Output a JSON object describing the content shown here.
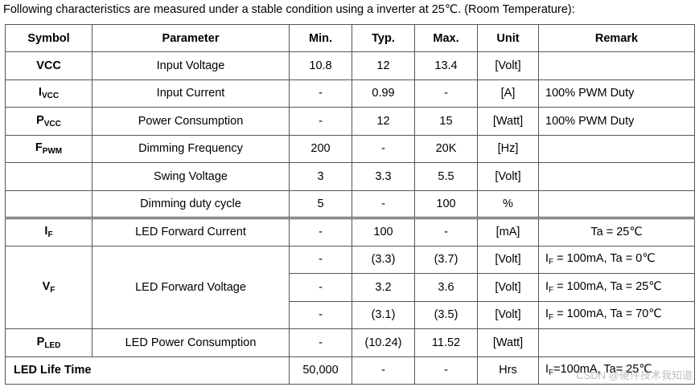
{
  "intro": "Following characteristics are measured under a stable condition using a inverter at 25℃. (Room Temperature):",
  "headers": [
    "Symbol",
    "Parameter",
    "Min.",
    "Typ.",
    "Max.",
    "Unit",
    "Remark"
  ],
  "rows": {
    "vcc": {
      "symbol": "VCC",
      "param": "Input Voltage",
      "min": "10.8",
      "typ": "12",
      "max": "13.4",
      "unit": "[Volt]",
      "remark": ""
    },
    "ivcc": {
      "symbol": "I",
      "symbol_sub": "VCC",
      "param": "Input Current",
      "min": "-",
      "typ": "0.99",
      "max": "-",
      "unit": "[A]",
      "remark": "100% PWM Duty"
    },
    "pvcc": {
      "symbol": "P",
      "symbol_sub": "VCC",
      "param": "Power Consumption",
      "min": "-",
      "typ": "12",
      "max": "15",
      "unit": "[Watt]",
      "remark": "100% PWM Duty"
    },
    "fpwm": {
      "symbol": "F",
      "symbol_sub": "PWM",
      "param": "Dimming Frequency",
      "min": "200",
      "typ": "-",
      "max": "20K",
      "unit": "[Hz]",
      "remark": ""
    },
    "swing": {
      "symbol": "",
      "param": "Swing Voltage",
      "min": "3",
      "typ": "3.3",
      "max": "5.5",
      "unit": "[Volt]",
      "remark": ""
    },
    "duty": {
      "symbol": "",
      "param": "Dimming duty cycle",
      "min": "5",
      "typ": "-",
      "max": "100",
      "unit": "%",
      "remark": ""
    },
    "if": {
      "symbol": "I",
      "symbol_sub": "F",
      "param": "LED Forward Current",
      "min": "-",
      "typ": "100",
      "max": "-",
      "unit": "[mA]",
      "remark": "Ta = 25℃"
    },
    "vf": {
      "symbol": "V",
      "symbol_sub": "F",
      "param": "LED Forward Voltage",
      "sub_rows": [
        {
          "min": "-",
          "typ": "(3.3)",
          "max": "(3.7)",
          "unit": "[Volt]",
          "remark_pre": "I",
          "remark_sub": "F",
          "remark_post": " = 100mA, Ta = 0℃"
        },
        {
          "min": "-",
          "typ": "3.2",
          "max": "3.6",
          "unit": "[Volt]",
          "remark_pre": "I",
          "remark_sub": "F",
          "remark_post": " = 100mA, Ta = 25℃"
        },
        {
          "min": "-",
          "typ": "(3.1)",
          "max": "(3.5)",
          "unit": "[Volt]",
          "remark_pre": "I",
          "remark_sub": "F",
          "remark_post": " = 100mA, Ta = 70℃"
        }
      ]
    },
    "pled": {
      "symbol": "P",
      "symbol_sub": "LED",
      "param": "LED Power Consumption",
      "min": "-",
      "typ": "(10.24)",
      "max": "11.52",
      "unit": "[Watt]",
      "remark": ""
    },
    "life": {
      "symbol": "LED Life Time",
      "param": "",
      "min": "50,000",
      "typ": "-",
      "max": "-",
      "unit": "Hrs",
      "remark_pre": "I",
      "remark_sub": "F",
      "remark_post": "=100mA, Ta= 25℃"
    }
  },
  "watermark": "CSDN @硬件技术我知道"
}
